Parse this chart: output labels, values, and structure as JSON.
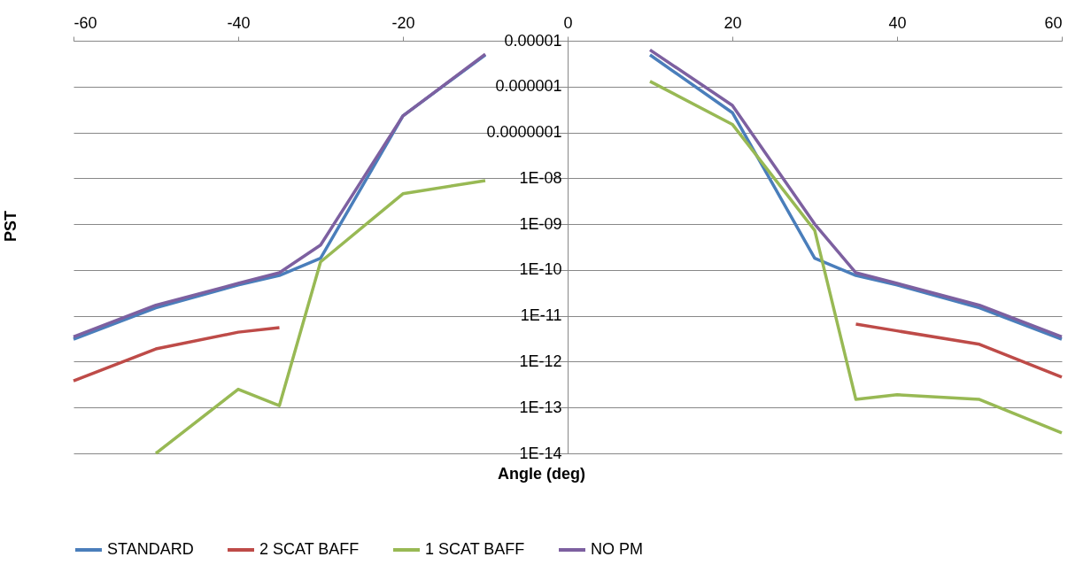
{
  "chart_data": {
    "type": "line",
    "xlabel": "Angle  (deg)",
    "ylabel": "PST",
    "log": true,
    "grid": "y",
    "legend": "bottom",
    "line_style": "solid",
    "marker": "none",
    "x": [
      -60,
      -50,
      -40,
      -35,
      -30,
      -20,
      -10,
      0,
      10,
      20,
      30,
      35,
      40,
      50,
      60
    ],
    "xlim": [
      -60,
      60
    ],
    "xticks": [
      -60,
      -40,
      -20,
      0,
      20,
      40,
      60
    ],
    "ylim": [
      1e-14,
      1e-05
    ],
    "yticks": [
      {
        "value": 1e-05,
        "label": "0.00001"
      },
      {
        "value": 1e-06,
        "label": "0.000001"
      },
      {
        "value": 1e-07,
        "label": "0.0000001"
      },
      {
        "value": 1e-08,
        "label": "1E-08"
      },
      {
        "value": 1e-09,
        "label": "1E-09"
      },
      {
        "value": 1e-10,
        "label": "1E-10"
      },
      {
        "value": 1e-11,
        "label": "1E-11"
      },
      {
        "value": 1e-12,
        "label": "1E-12"
      },
      {
        "value": 1e-13,
        "label": "1E-13"
      },
      {
        "value": 1e-14,
        "label": "1E-14"
      }
    ],
    "series": [
      {
        "name": "STANDARD",
        "color": "#4a7ebb",
        "values": [
          3.1e-12,
          1.5e-11,
          4.7e-11,
          7.6e-11,
          1.8e-10,
          2.3e-07,
          4.9e-06,
          null,
          4.9e-06,
          2.7e-07,
          1.8e-10,
          7.6e-11,
          4.7e-11,
          1.5e-11,
          3.1e-12
        ]
      },
      {
        "name": "2 SCAT BAFF",
        "color": "#be4b48",
        "values": [
          3.8e-13,
          1.9e-12,
          4.4e-12,
          5.5e-12,
          null,
          null,
          null,
          null,
          null,
          null,
          null,
          6.6e-12,
          4.7e-12,
          2.4e-12,
          4.6e-13
        ]
      },
      {
        "name": "1 SCAT BAFF",
        "color": "#98b954",
        "values": [
          null,
          1e-14,
          2.5e-13,
          1.1e-13,
          1.5e-10,
          4.6e-09,
          8.9e-09,
          null,
          1.3e-06,
          1.5e-07,
          7.3e-10,
          1.5e-13,
          1.9e-13,
          1.5e-13,
          2.8e-14
        ]
      },
      {
        "name": "NO PM",
        "color": "#7d60a0",
        "values": [
          3.5e-12,
          1.7e-11,
          5.1e-11,
          8.7e-11,
          3.5e-10,
          2.3e-07,
          5.1e-06,
          null,
          6.3e-06,
          3.9e-07,
          1e-09,
          8.7e-11,
          5.1e-11,
          1.7e-11,
          3.5e-12
        ]
      }
    ]
  }
}
